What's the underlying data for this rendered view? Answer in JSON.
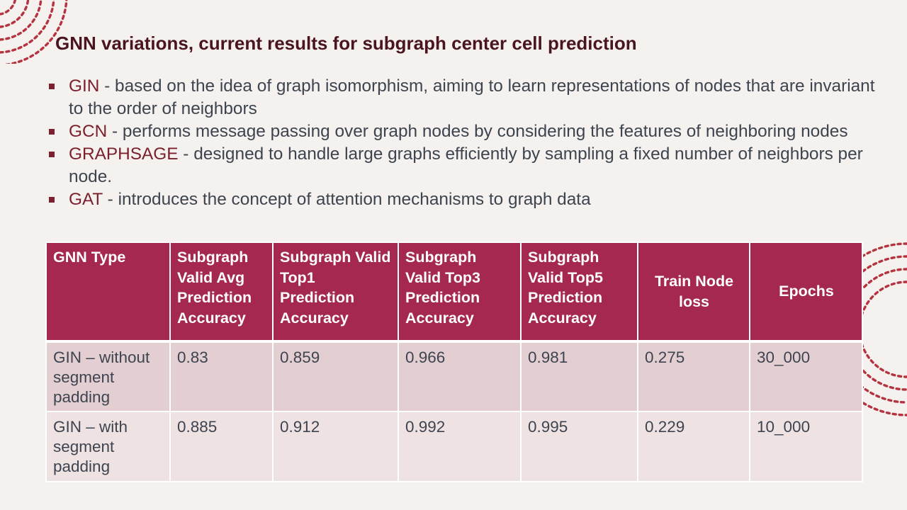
{
  "title": "GNN variations, current results for subgraph center cell prediction",
  "bullets": [
    {
      "term": "GIN",
      "text": " - based on the idea of graph isomorphism, aiming to learn representations of nodes that are invariant to the order of neighbors"
    },
    {
      "term": "GCN",
      "text": " - performs message passing over graph nodes by considering the features of neighboring nodes"
    },
    {
      "term": "GRAPHSAGE",
      "text": " - designed to handle large graphs efficiently by sampling a fixed number of neighbors per node."
    },
    {
      "term": "GAT",
      "text": " - introduces the concept of attention mechanisms to graph data"
    }
  ],
  "table": {
    "headers": [
      "GNN Type",
      "Subgraph Valid Avg Prediction Accuracy",
      "Subgraph Valid Top1 Prediction Accuracy",
      "Subgraph Valid Top3 Prediction Accuracy",
      "Subgraph Valid Top5 Prediction Accuracy",
      "Train Node loss",
      "Epochs"
    ],
    "rows": [
      [
        "GIN – without segment padding",
        "0.83",
        "0.859",
        "0.966",
        "0.981",
        "0.275",
        "30_000"
      ],
      [
        "GIN – with segment padding",
        "0.885",
        "0.912",
        "0.992",
        "0.995",
        "0.229",
        "10_000"
      ]
    ]
  },
  "colors": {
    "accent": "#a5294f",
    "title": "#4a1420",
    "term": "#7a1f2b",
    "body_text": "#3d4450",
    "row_a": "#e3cfd2",
    "row_b": "#efe2e3",
    "background": "#f4f1ee"
  }
}
